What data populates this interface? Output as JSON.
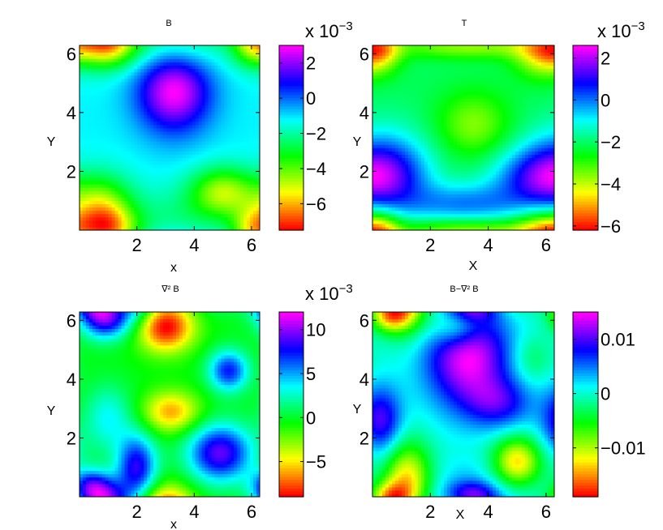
{
  "chart_data": [
    {
      "type": "heatmap",
      "title": "B",
      "xlabel": "x",
      "ylabel": "Y",
      "xlim": [
        0,
        6.283
      ],
      "ylim": [
        0,
        6.283
      ],
      "xticks": [
        2,
        4,
        6
      ],
      "yticks": [
        2,
        4,
        6
      ],
      "colorbar": {
        "ticks": [
          2,
          0,
          -2,
          -4,
          -6
        ],
        "tick_labels": [
          "2",
          "0",
          "−2",
          "−4",
          "−6"
        ],
        "range": [
          -7.5,
          3
        ],
        "exponent_label": "x 10",
        "exponent": "−3"
      },
      "colormap": "hsv",
      "bumps": [
        {
          "x": 3.3,
          "y": 4.8,
          "sx": 0.9,
          "sy": 1.0,
          "a": 10
        },
        {
          "x": 0.7,
          "y": 0.7,
          "sx": 0.8,
          "sy": 0.8,
          "a": -9
        },
        {
          "x": 5.0,
          "y": 1.3,
          "sx": 0.8,
          "sy": 0.6,
          "a": -8
        },
        {
          "x": 1.0,
          "y": 6.3,
          "sx": 0.7,
          "sy": 0.5,
          "a": -7
        },
        {
          "x": 6.0,
          "y": 6.3,
          "sx": 0.5,
          "sy": 0.5,
          "a": -6
        },
        {
          "x": 3.3,
          "y": 0.1,
          "sx": 1.2,
          "sy": 0.8,
          "a": -4
        }
      ]
    },
    {
      "type": "heatmap",
      "title": "T",
      "xlabel": "X",
      "ylabel": "Y",
      "xlim": [
        0,
        6.283
      ],
      "ylim": [
        0,
        6.283
      ],
      "xticks": [
        2,
        4,
        6
      ],
      "yticks": [
        2,
        4,
        6
      ],
      "colorbar": {
        "ticks": [
          2,
          0,
          -2,
          -4,
          -6
        ],
        "tick_labels": [
          "2",
          "0",
          "−2",
          "−4",
          "−6"
        ],
        "range": [
          -6.2,
          2.6
        ],
        "exponent_label": "x 10",
        "exponent": "−3"
      },
      "colormap": "hsv",
      "bumps": [
        {
          "x": 0.4,
          "y": 2.0,
          "sx": 1.1,
          "sy": 1.0,
          "a": 7
        },
        {
          "x": 3.2,
          "y": 0.9,
          "sx": 1.5,
          "sy": 0.5,
          "a": 5
        },
        {
          "x": 5.8,
          "y": 1.8,
          "sx": 1.2,
          "sy": 0.7,
          "a": 6
        },
        {
          "x": 3.5,
          "y": 3.6,
          "sx": 0.9,
          "sy": 0.8,
          "a": -4
        },
        {
          "x": 5.9,
          "y": 6.1,
          "sx": 0.7,
          "sy": 0.6,
          "a": -7
        },
        {
          "x": 0.3,
          "y": 6.2,
          "sx": 0.5,
          "sy": 0.5,
          "a": -5
        },
        {
          "x": 3.3,
          "y": 0.0,
          "sx": 2.0,
          "sy": 0.3,
          "a": -5
        }
      ]
    },
    {
      "type": "heatmap",
      "title": "∇² B",
      "xlabel": "x",
      "ylabel": "Y",
      "xlim": [
        0,
        6.283
      ],
      "ylim": [
        0,
        6.283
      ],
      "xticks": [
        2,
        4,
        6
      ],
      "yticks": [
        2,
        4,
        6
      ],
      "colorbar": {
        "ticks": [
          10,
          5,
          0,
          -5
        ],
        "tick_labels": [
          "10",
          "5",
          "0",
          "−5"
        ],
        "range": [
          -9,
          12
        ],
        "exponent_label": "x 10",
        "exponent": "−3"
      },
      "colormap": "hsv",
      "bumps": [
        {
          "x": 0.9,
          "y": 6.1,
          "sx": 0.6,
          "sy": 0.5,
          "a": 10
        },
        {
          "x": 3.0,
          "y": 5.8,
          "sx": 0.7,
          "sy": 0.6,
          "a": -9
        },
        {
          "x": 5.2,
          "y": 4.3,
          "sx": 0.5,
          "sy": 0.5,
          "a": 8
        },
        {
          "x": 3.2,
          "y": 2.9,
          "sx": 0.7,
          "sy": 0.5,
          "a": -6
        },
        {
          "x": 4.9,
          "y": 1.5,
          "sx": 0.8,
          "sy": 0.7,
          "a": 10
        },
        {
          "x": 2.0,
          "y": 1.0,
          "sx": 0.5,
          "sy": 0.8,
          "a": 9
        },
        {
          "x": 0.4,
          "y": 0.4,
          "sx": 0.5,
          "sy": 0.4,
          "a": 7
        },
        {
          "x": 1.0,
          "y": 2.7,
          "sx": 0.6,
          "sy": 0.8,
          "a": 4
        }
      ]
    },
    {
      "type": "heatmap",
      "title": "B−∇² B",
      "xlabel": "X",
      "ylabel": "Y",
      "xlim": [
        0,
        6.283
      ],
      "ylim": [
        0,
        6.283
      ],
      "xticks": [
        2,
        4,
        6
      ],
      "yticks": [
        2,
        4,
        6
      ],
      "colorbar": {
        "ticks": [
          0.01,
          0,
          -0.01
        ],
        "tick_labels": [
          "0.01",
          "0",
          "−0.01"
        ],
        "range": [
          -0.019,
          0.015
        ],
        "exponent_label": "",
        "exponent": ""
      },
      "colormap": "hsv",
      "bumps": [
        {
          "x": 3.3,
          "y": 4.8,
          "sx": 1.0,
          "sy": 1.2,
          "a": 12
        },
        {
          "x": 2.9,
          "y": 5.8,
          "sx": 0.6,
          "sy": 0.5,
          "a": -6
        },
        {
          "x": 4.4,
          "y": 3.2,
          "sx": 0.8,
          "sy": 0.6,
          "a": 6
        },
        {
          "x": 0.3,
          "y": 2.6,
          "sx": 0.5,
          "sy": 0.8,
          "a": 8
        },
        {
          "x": 0.6,
          "y": 6.2,
          "sx": 0.5,
          "sy": 0.4,
          "a": -10
        },
        {
          "x": 1.2,
          "y": 0.6,
          "sx": 0.6,
          "sy": 0.9,
          "a": -11
        },
        {
          "x": 5.0,
          "y": 1.2,
          "sx": 0.6,
          "sy": 0.6,
          "a": -11
        },
        {
          "x": 5.5,
          "y": 4.7,
          "sx": 0.5,
          "sy": 0.6,
          "a": -3
        },
        {
          "x": 3.4,
          "y": 0.1,
          "sx": 0.6,
          "sy": 0.3,
          "a": 6
        }
      ]
    }
  ]
}
